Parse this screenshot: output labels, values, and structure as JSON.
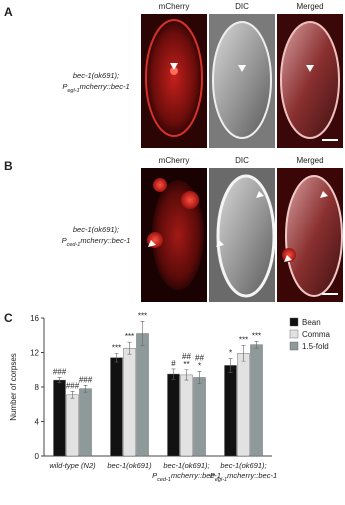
{
  "panel_a": {
    "label": "A",
    "headers": [
      "mCherry",
      "DIC",
      "Merged"
    ],
    "genotype": [
      "bec-1(ok691);",
      [
        "P",
        "egl-1",
        "mcherry::bec-1"
      ]
    ]
  },
  "panel_b": {
    "label": "B",
    "headers": [
      "mCherry",
      "DIC",
      "Merged"
    ],
    "genotype": [
      "bec-1(ok691);",
      [
        "P",
        "ced-1",
        "mcherry::bec-1"
      ]
    ]
  },
  "chart_data": {
    "type": "bar",
    "panel_label": "C",
    "y_label": "Number of corpses",
    "categories": [
      [
        "wild-type (N2)"
      ],
      [
        "bec-1(ok691)"
      ],
      [
        "bec-1(ok691);",
        [
          "P",
          "ced-1",
          "mcherry::bec-1"
        ]
      ],
      [
        "bec-1(ok691);",
        [
          "P",
          "egl-1",
          "mcherry::bec-1"
        ]
      ]
    ],
    "series": [
      {
        "name": "Bean",
        "color": "#111111",
        "values": [
          8.8,
          11.4,
          9.5,
          10.5
        ],
        "errors": [
          0.3,
          0.5,
          0.6,
          0.8
        ],
        "significance": [
          [
            "###"
          ],
          [
            "***"
          ],
          [
            "#"
          ],
          [
            "*"
          ]
        ]
      },
      {
        "name": "Comma",
        "color": "#e2e2e2",
        "values": [
          7.1,
          12.5,
          9.4,
          11.9
        ],
        "errors": [
          0.4,
          0.7,
          0.6,
          0.9
        ],
        "significance": [
          [
            "###"
          ],
          [
            "***"
          ],
          [
            "##",
            "**"
          ],
          [
            "***"
          ]
        ]
      },
      {
        "name": "1.5-fold",
        "color": "#8e9999",
        "values": [
          7.8,
          14.2,
          9.1,
          12.9
        ],
        "errors": [
          0.4,
          1.4,
          0.7,
          0.4
        ],
        "significance": [
          [
            "###"
          ],
          [
            "***"
          ],
          [
            "##",
            "*"
          ],
          [
            "***"
          ]
        ]
      }
    ],
    "ylim": [
      0,
      16
    ],
    "yticks": [
      0,
      4,
      8,
      12,
      16
    ],
    "legend": "right"
  }
}
